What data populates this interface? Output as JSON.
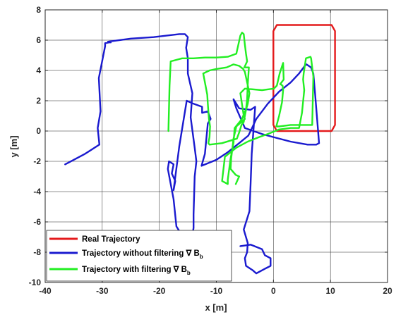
{
  "chart_data": {
    "type": "line",
    "xlabel": "x [m]",
    "ylabel": "y [m]",
    "xlim": [
      -40,
      20
    ],
    "ylim": [
      -10,
      8
    ],
    "xticks": [
      -40,
      -30,
      -20,
      -10,
      0,
      10,
      20
    ],
    "yticks": [
      -10,
      -8,
      -6,
      -4,
      -2,
      0,
      2,
      4,
      6,
      8
    ],
    "grid": true,
    "legend_position": "bottom-left",
    "legend_symbol": "∇",
    "legend_subscript": "b",
    "series": [
      {
        "name": "Real Trajectory",
        "color": "#e41a1c",
        "x": [
          0,
          0,
          0.6,
          10.2,
          10.8,
          10.8,
          10.2,
          0.6,
          0
        ],
        "y": [
          0.4,
          6.6,
          7,
          7,
          6.6,
          0.4,
          0,
          0,
          0.4
        ]
      },
      {
        "name": "Trajectory without filtering",
        "legend_label": "Trajectory without filtering ∇ B",
        "color": "#1a1acf",
        "x": [
          -36.5,
          -35,
          -33,
          -30.5,
          -30.8,
          -30.3,
          -30.6,
          -29.5,
          -29.5,
          -28.8,
          -28.5,
          -29,
          -25,
          -21,
          -16.5,
          -15.5,
          -15,
          -15.3,
          -15,
          -15,
          -14.2,
          -14.5,
          -13.8,
          -13.5,
          -13.8,
          -14,
          -14,
          -14.2,
          -13.5,
          -13.2,
          -13.2,
          -13.5,
          -14.5,
          -15.5,
          -17,
          -17.5,
          -18.5,
          -18.3,
          -17.5,
          -17.8,
          -17.2,
          -17.5,
          -16.5,
          -15.2,
          -14,
          -12.5,
          -12.5,
          -11.5,
          -11,
          -11.5,
          -12,
          -12.6,
          -10,
          -8,
          -6,
          -4.4,
          -4,
          -3,
          -1,
          1,
          3,
          4.5,
          5.5,
          5.8,
          6.6,
          7,
          7.3,
          8,
          7.5,
          6,
          3,
          0,
          -2,
          -5,
          -6.5,
          -7,
          -6,
          -4,
          -3.2,
          -3.8,
          -4,
          -4.2,
          -5.2,
          -4.5,
          -4.6,
          -5,
          -4.8,
          -3.6,
          -3,
          -2.5,
          -1.5,
          -1,
          -0.5,
          -0.5,
          -1.5,
          -2,
          -4,
          -5.8
        ],
        "y": [
          -2.2,
          -1.9,
          -1.5,
          -0.9,
          0.2,
          1.3,
          3.5,
          5.6,
          5.8,
          5.85,
          5.85,
          5.9,
          6.1,
          6.2,
          6.4,
          6.4,
          6.2,
          5.5,
          4.8,
          3.8,
          2.5,
          0.9,
          -1.1,
          -2,
          -3,
          -5.5,
          -6.4,
          -6.9,
          -7.7,
          -8,
          -8,
          -7.9,
          -7.6,
          -7.2,
          -6.3,
          -4.5,
          -2.5,
          -2,
          -2.2,
          -2.8,
          -3.3,
          -3.9,
          -1,
          2,
          1.8,
          1.6,
          1.2,
          1.3,
          0.8,
          0.5,
          -1.5,
          -2.3,
          -1.9,
          -1.4,
          -0.8,
          -0.3,
          0,
          0.8,
          1.8,
          2.6,
          3.2,
          3.8,
          4.3,
          4.4,
          4.2,
          3.8,
          2.5,
          -0.8,
          -0.9,
          -0.9,
          -0.7,
          -0.4,
          -0.2,
          0.2,
          1.5,
          2.1,
          1.5,
          1.4,
          1.6,
          -1.5,
          -3.5,
          -5.3,
          -6.5,
          -7.4,
          -8,
          -8.4,
          -8.9,
          -9.2,
          -9.4,
          -9.3,
          -9.1,
          -9,
          -8.9,
          -8.4,
          -8.2,
          -7.8,
          -7.5,
          -7.6
        ]
      },
      {
        "name": "Trajectory with filtering",
        "legend_label": "Trajectory with filtering ∇ B",
        "color": "#22ee22",
        "x": [
          -18.4,
          -18.2,
          -18,
          -16,
          -14,
          -12,
          -10,
          -8,
          -6.5,
          -5.8,
          -5.5,
          -5.2,
          -5,
          -4.8,
          -4.6,
          -5.1,
          -4.3,
          -4.5,
          -4.6,
          -4.8,
          -5.2,
          -5.6,
          -6,
          -6.4,
          -9,
          -11.2,
          -11.4,
          -11.2,
          -11.1,
          -11.3,
          -11.5,
          -11.6,
          -12.3,
          -11.2,
          -10,
          -8.2,
          -7,
          -6,
          -5.3,
          -5,
          -4.2,
          -4.5,
          -4.8,
          -5,
          -5.5,
          -6.8,
          -7,
          -7.5,
          -8,
          -8,
          -9,
          -8.5,
          -6.5,
          -4.5,
          -2.5,
          -1,
          1,
          3,
          4.5,
          5,
          5.4,
          5.2,
          5.3,
          5.7,
          6.5,
          6.6,
          7,
          6.8,
          5,
          3,
          1,
          0.5,
          1,
          1.5,
          1.7,
          1.6,
          1.2,
          1.8,
          1.7,
          1.1,
          0.6,
          0.1,
          -2,
          -5,
          -5.8,
          -5.2,
          -5,
          -6.5,
          -7,
          -7.2,
          -7.4,
          -7.5,
          -6.6,
          -6,
          -6.6
        ],
        "y": [
          0,
          3,
          4.6,
          4.8,
          4.8,
          4.85,
          4.85,
          4.9,
          5.1,
          6.3,
          6.5,
          6.4,
          5.7,
          5.1,
          4.6,
          4.2,
          4.2,
          3.1,
          2.1,
          1.4,
          0.6,
          0.4,
          -0.1,
          -0.5,
          -0.8,
          -0.9,
          -0.8,
          -0.4,
          0.3,
          0.8,
          1.8,
          2.4,
          3.8,
          4,
          4.1,
          4.2,
          4.4,
          4.3,
          4.1,
          3.9,
          2.5,
          1.8,
          1.4,
          1.3,
          0.8,
          0.2,
          -0.8,
          -1.8,
          -3.2,
          -3.5,
          -3.3,
          -1.7,
          -1.1,
          -0.7,
          -0.4,
          -0.2,
          0.1,
          0.2,
          0.2,
          1.2,
          2.7,
          3.4,
          3.8,
          4.8,
          4.9,
          4.8,
          3.6,
          0.4,
          0.4,
          0.4,
          0.3,
          0.3,
          1,
          1.9,
          2.7,
          3,
          3.1,
          3.4,
          4.5,
          3.8,
          3,
          2.8,
          2.7,
          2.8,
          2.5,
          1,
          0.8,
          0.3,
          -0.5,
          -1.2,
          -1.8,
          -2.5,
          -2.9,
          -3,
          -3.5
        ]
      }
    ]
  }
}
